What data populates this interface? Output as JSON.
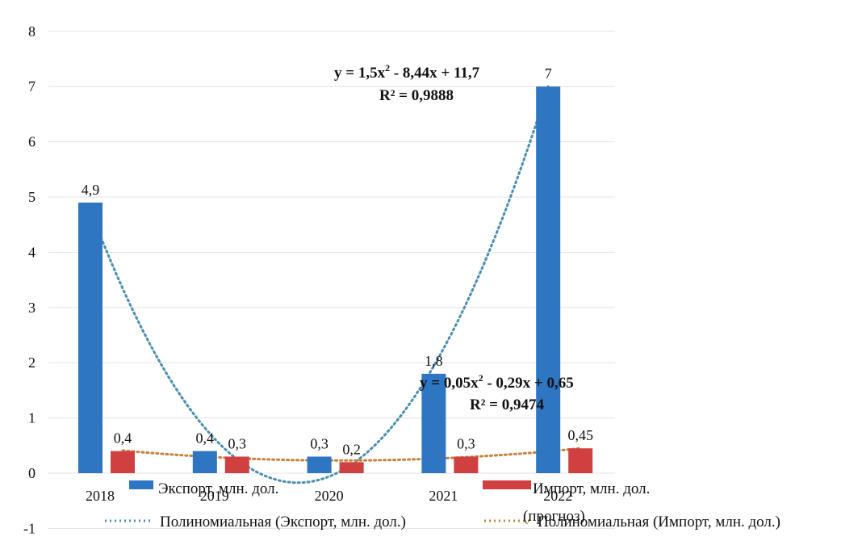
{
  "chart_data": {
    "type": "bar",
    "categories": [
      "2018",
      "2019",
      "2020",
      "2021",
      "2022"
    ],
    "ylim": [
      -1,
      8
    ],
    "yticks": [
      -1,
      0,
      1,
      2,
      3,
      4,
      5,
      6,
      7,
      8
    ],
    "grid": true,
    "series": [
      {
        "name": "Экспорт, млн. дол.",
        "color": "#2E75C2",
        "values": [
          4.9,
          0.4,
          0.3,
          1.8,
          7
        ],
        "labels": [
          "4,9",
          "0,4",
          "0,3",
          "1,8",
          "7"
        ]
      },
      {
        "name": "Импорт, млн. дол.",
        "color": "#D04040",
        "values": [
          0.4,
          0.3,
          0.2,
          0.3,
          0.45
        ],
        "labels": [
          "0,4",
          "0,3",
          "0,2",
          "0,3",
          "0,45"
        ]
      }
    ],
    "trendlines": [
      {
        "name": "Полиномиальная (Экспорт, млн. дол.)",
        "color": "#4A8FB0",
        "coefficients": [
          1.5,
          -8.44,
          11.7
        ],
        "equation_prefix": "y = 1,5x",
        "equation_suffix": " - 8,44x + 11,7",
        "r2": "R² = 0,9888"
      },
      {
        "name": "Полиномиальная (Импорт, млн. дол.)",
        "color": "#C8803C",
        "coefficients": [
          0.05,
          -0.29,
          0.65
        ],
        "equation_prefix": "y = 0,05x",
        "equation_suffix": " - 0,29x + 0,65",
        "r2": "R² = 0,9474"
      }
    ],
    "exponent": "2",
    "legend_position": "bottom",
    "legend_extra_text": "(прогноз)"
  }
}
